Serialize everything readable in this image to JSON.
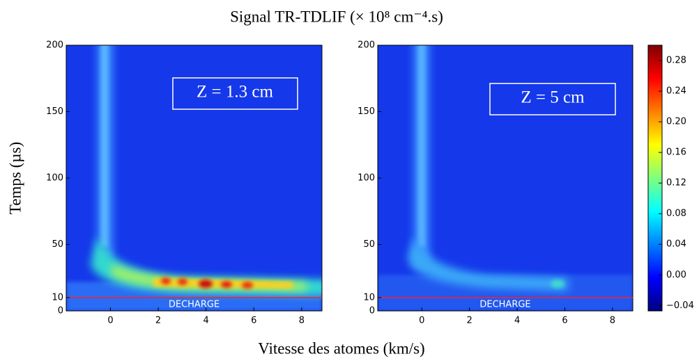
{
  "figure": {
    "title": "Signal TR-TDLIF (× 10⁸ cm⁻⁴.s)",
    "y_label": "Temps (µs)",
    "x_label": "Vitesse des atomes (km/s)",
    "xlim": [
      -1.85,
      8.85
    ],
    "xticks": [
      0,
      2,
      4,
      6,
      8
    ],
    "ylim": [
      0,
      200
    ],
    "yticks": [
      0,
      10,
      50,
      100,
      150,
      200
    ],
    "panels": [
      {
        "annotation": "Z = 1.3 cm",
        "marker_label": "DECHARGE",
        "marker_time": 10
      },
      {
        "annotation": "Z = 5 cm",
        "marker_label": "DECHARGE",
        "marker_time": 10
      }
    ],
    "marker_color": "#ff2020",
    "colorbar": {
      "clim": [
        -0.047,
        0.3
      ],
      "colormap": [
        "#00007f",
        "#0000ff",
        "#007fff",
        "#00ffff",
        "#7fff7f",
        "#ffff00",
        "#ff7f00",
        "#ff0000",
        "#7f0000"
      ],
      "ticks": [
        {
          "value": -0.04,
          "label": "−0.04"
        },
        {
          "value": 0,
          "label": "0.00"
        },
        0.04,
        0.08,
        0.12,
        0.16,
        {
          "value": 0.2,
          "label": "0.20"
        },
        0.24,
        0.28
      ]
    }
  }
}
